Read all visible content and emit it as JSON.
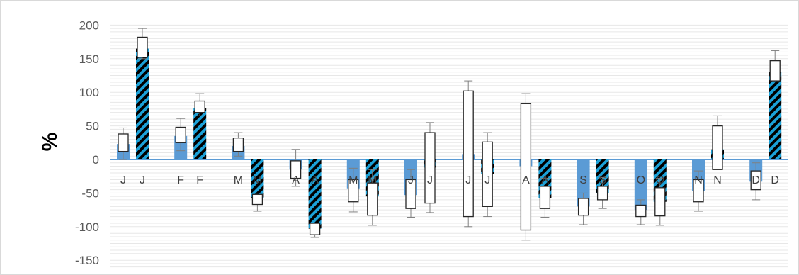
{
  "colors": {
    "solid_bar": "#5b9bd5",
    "hatch_bar": "#1ba1d8",
    "hatch_line": "#000000",
    "box_fill": "#ffffff",
    "box_stroke": "#262626",
    "grid": "#e7e7e7",
    "zero_line": "#5b9bd5"
  },
  "chart_data": {
    "type": "bar",
    "title": "",
    "xlabel": "",
    "ylabel": "%",
    "ylim": [
      -160,
      200
    ],
    "yticks": [
      200,
      150,
      100,
      50,
      0,
      -50,
      -100,
      -150
    ],
    "grid": "horizontal minor lines",
    "legend": "none",
    "months": [
      {
        "solid": {
          "label": "J",
          "value": 23,
          "box": [
            12,
            38
          ],
          "whisker": [
            0,
            47
          ]
        },
        "hatched": {
          "label": "J",
          "value": 165,
          "box": [
            152,
            182
          ],
          "whisker": [
            150,
            195
          ]
        }
      },
      {
        "solid": {
          "label": "F",
          "value": 35,
          "box": [
            25,
            48
          ],
          "whisker": [
            13,
            61
          ]
        },
        "hatched": {
          "label": "F",
          "value": 77,
          "box": [
            70,
            87
          ],
          "whisker": [
            65,
            98
          ]
        }
      },
      {
        "solid": {
          "label": "M",
          "value": 20,
          "box": [
            12,
            32
          ],
          "whisker": [
            5,
            40
          ]
        },
        "hatched": {
          "label": "M",
          "value": -57,
          "box": [
            -67,
            -52
          ],
          "whisker": [
            -77,
            -52
          ]
        }
      },
      {
        "solid": {
          "label": "A",
          "value": -15,
          "box": [
            -28,
            -2
          ],
          "whisker": [
            -40,
            15
          ]
        },
        "hatched": {
          "label": "A",
          "value": -103,
          "box": [
            -112,
            -95
          ],
          "whisker": [
            -116,
            -95
          ]
        }
      },
      {
        "solid": {
          "label": "M",
          "value": -43,
          "box": [
            -63,
            -30
          ],
          "whisker": [
            -78,
            -13
          ]
        },
        "hatched": {
          "label": "M",
          "value": -55,
          "box": [
            -83,
            -35
          ],
          "whisker": [
            -98,
            -15
          ]
        }
      },
      {
        "solid": {
          "label": "J",
          "value": -53,
          "box": [
            -73,
            -30
          ],
          "whisker": [
            -86,
            -15
          ]
        },
        "hatched": {
          "label": "J",
          "value": -12,
          "box": [
            -65,
            40
          ],
          "whisker": [
            -79,
            55
          ]
        }
      },
      {
        "solid": {
          "label": "J",
          "value": 8,
          "box": [
            -85,
            102
          ],
          "whisker": [
            -100,
            117
          ]
        },
        "hatched": {
          "label": "J",
          "value": -22,
          "box": [
            -70,
            26
          ],
          "whisker": [
            -85,
            40
          ]
        }
      },
      {
        "solid": {
          "label": "A",
          "value": -10,
          "box": [
            -105,
            83
          ],
          "whisker": [
            -120,
            98
          ]
        },
        "hatched": {
          "label": "A",
          "value": -57,
          "box": [
            -73,
            -40
          ],
          "whisker": [
            -86,
            -28
          ]
        }
      },
      {
        "solid": {
          "label": "S",
          "value": -70,
          "box": [
            -83,
            -58
          ],
          "whisker": [
            -97,
            -50
          ]
        },
        "hatched": {
          "label": "S",
          "value": -50,
          "box": [
            -60,
            -40
          ],
          "whisker": [
            -73,
            -27
          ]
        }
      },
      {
        "solid": {
          "label": "O",
          "value": -75,
          "box": [
            -85,
            -68
          ],
          "whisker": [
            -97,
            -60
          ]
        },
        "hatched": {
          "label": "O",
          "value": -63,
          "box": [
            -84,
            -42
          ],
          "whisker": [
            -98,
            -28
          ]
        }
      },
      {
        "solid": {
          "label": "N",
          "value": -47,
          "box": [
            -63,
            -30
          ],
          "whisker": [
            -77,
            -17
          ]
        },
        "hatched": {
          "label": "N",
          "value": 15,
          "box": [
            -15,
            50
          ],
          "whisker": [
            -15,
            65
          ]
        }
      },
      {
        "solid": {
          "label": "D",
          "value": -33,
          "box": [
            -45,
            -17
          ],
          "whisker": [
            -60,
            -5
          ]
        },
        "hatched": {
          "label": "D",
          "value": 130,
          "box": [
            117,
            147
          ],
          "whisker": [
            117,
            162
          ]
        }
      }
    ]
  }
}
